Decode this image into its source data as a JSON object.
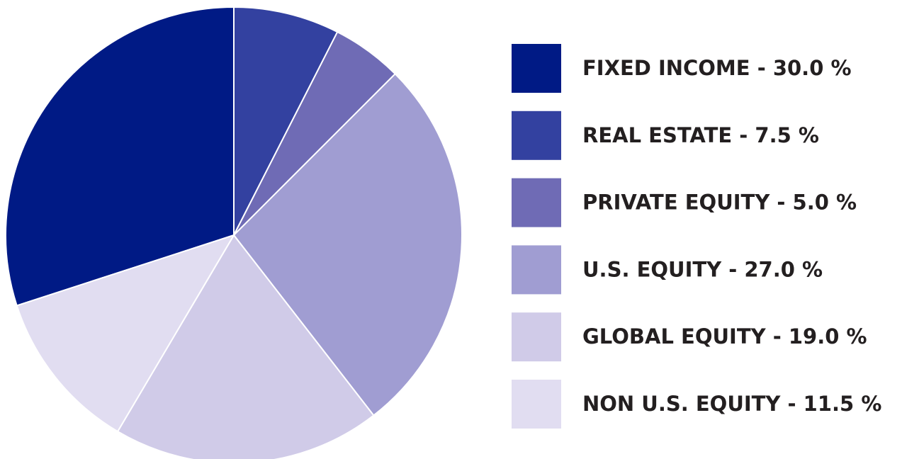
{
  "chart_data": {
    "type": "pie",
    "categories": [
      "FIXED INCOME - 30.0 %",
      "REAL ESTATE - 7.5 %",
      "PRIVATE EQUITY - 5.0 %",
      "U.S. EQUITY - 27.0 %",
      "GLOBAL EQUITY - 19.0 %",
      "NON U.S. EQUITY - 11.5 %"
    ],
    "values": [
      30.0,
      7.5,
      5.0,
      27.0,
      19.0,
      11.5
    ],
    "colors": [
      "#001a85",
      "#3341a0",
      "#6f6bb5",
      "#a09dd2",
      "#d0cbe8",
      "#e1ddf1"
    ],
    "legend": "right"
  }
}
